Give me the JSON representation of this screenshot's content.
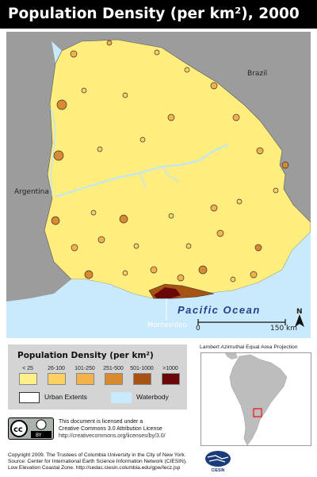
{
  "title": "Population Density (per km²), 2000",
  "map": {
    "labels": {
      "brazil": "Brazil",
      "argentina": "Argentina",
      "ocean": "Pacific Ocean",
      "city": "Montevideo"
    },
    "scale_bar": {
      "start": "0",
      "end": "150 km"
    },
    "north_arrow": "N",
    "colors": {
      "ocean": "#c9eafc",
      "neighbor_land": "#9c9c9c",
      "country_fill": "#ffed7d",
      "rivers": "#bfe6fb"
    }
  },
  "legend": {
    "title": "Population Density (per km²)",
    "classes": [
      {
        "label": "< 25",
        "color": "#fff08a"
      },
      {
        "label": "26-100",
        "color": "#fcd062"
      },
      {
        "label": "101-250",
        "color": "#f3b24a"
      },
      {
        "label": "251-500",
        "color": "#da8a2e"
      },
      {
        "label": "501-1000",
        "color": "#a65314"
      },
      {
        "label": ">1000",
        "color": "#6a0808"
      }
    ],
    "urban_extents": {
      "label": "Urban Extents",
      "color": "#ffffff"
    },
    "waterbody": {
      "label": "Waterbody",
      "color": "#c9eafc"
    }
  },
  "inset": {
    "projection": "Lambert Azimuthal Equal Area Projection",
    "highlight_color": "#e02020"
  },
  "license": {
    "icon_cc": "cc",
    "icon_by": "BY",
    "line1": "This document is licensed under a",
    "line2": "Creative Commons 3.0 Attribution License",
    "url": "http://creativecommons.org/licenses/by/3.0/"
  },
  "footer": {
    "line1": "Copyright 2009. The Trustees of Columbia University in the City of New York.",
    "line2": "Source: Center for International Earth Science Information Network (CIESIN),",
    "line3_prefix": "Low Elevation Coastal Zone.",
    "line3_url": "http://sedac.ciesin.columbia.edu/gpw/lecz.jsp"
  },
  "logo": {
    "text": "CIESIN"
  }
}
